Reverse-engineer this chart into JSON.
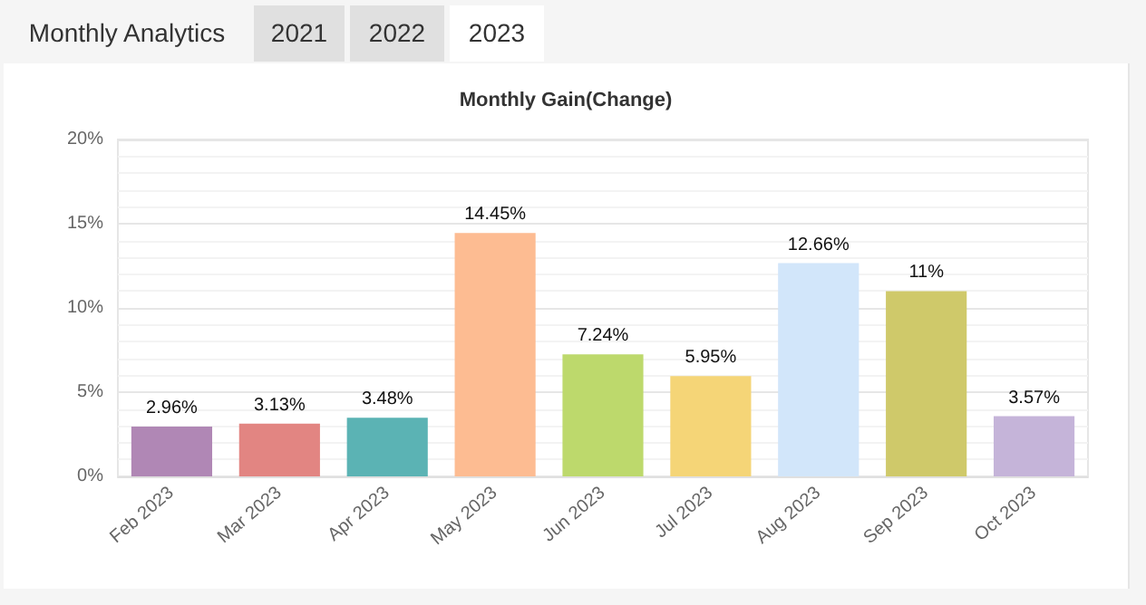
{
  "chart_data": {
    "type": "bar",
    "title": "Monthly Gain(Change)",
    "annotations": [
      "Monthly Analytics",
      "2021",
      "2022",
      "2023"
    ],
    "categories": [
      "Feb 2023",
      "Mar 2023",
      "Apr 2023",
      "May 2023",
      "Jun 2023",
      "Jul 2023",
      "Aug 2023",
      "Sep 2023",
      "Oct 2023"
    ],
    "values": [
      2.96,
      3.13,
      3.48,
      14.45,
      7.24,
      5.95,
      12.66,
      11,
      3.57
    ],
    "value_labels": [
      "2.96%",
      "3.13%",
      "3.48%",
      "14.45%",
      "7.24%",
      "5.95%",
      "12.66%",
      "11%",
      "3.57%"
    ],
    "colors": [
      "#b087b5",
      "#e28582",
      "#5bb3b4",
      "#fdbc92",
      "#bdd96c",
      "#f5d577",
      "#d2e6fa",
      "#cfc96a",
      "#c5b4d9"
    ],
    "ylim": [
      0,
      20
    ],
    "yticks": [
      {
        "value": 0,
        "label": "0%"
      },
      {
        "value": 5,
        "label": "5%"
      },
      {
        "value": 10,
        "label": "10%"
      },
      {
        "value": 15,
        "label": "15%"
      },
      {
        "value": 20,
        "label": "20%"
      }
    ],
    "grid": true
  }
}
